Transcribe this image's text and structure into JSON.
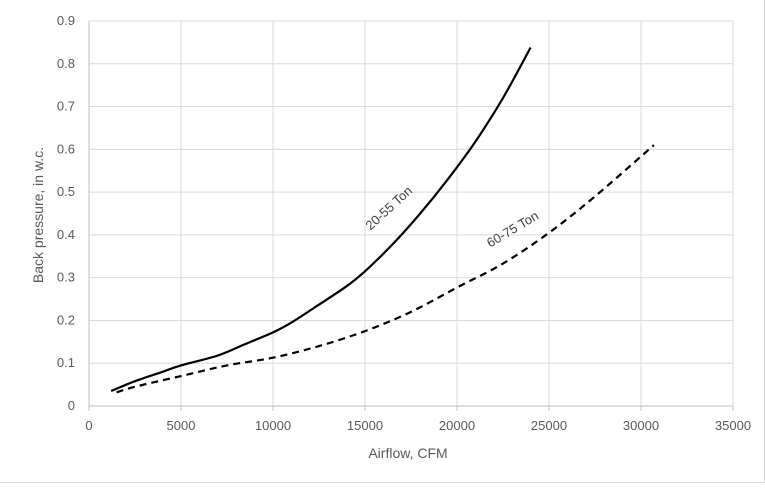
{
  "chart_data": {
    "type": "line",
    "title": "",
    "xlabel": "Airflow, CFM",
    "ylabel": "Back pressure,  in w.c.",
    "xlim": [
      0,
      35000
    ],
    "ylim": [
      0,
      0.9
    ],
    "xticks": [
      0,
      5000,
      10000,
      15000,
      20000,
      25000,
      30000,
      35000
    ],
    "yticks": [
      0,
      0.1,
      0.2,
      0.3,
      0.4,
      0.5,
      0.6,
      0.7,
      0.8,
      0.9
    ],
    "xtick_labels": [
      "0",
      "5000",
      "10000",
      "15000",
      "20000",
      "25000",
      "30000",
      "35000"
    ],
    "ytick_labels": [
      "0",
      "0.1",
      "0.2",
      "0.3",
      "0.4",
      "0.5",
      "0.6",
      "0.7",
      "0.8",
      "0.9"
    ],
    "grid": true,
    "legend": "none",
    "series": [
      {
        "name": "20-55 Ton",
        "style": "solid",
        "color": "#000000",
        "x": [
          1200,
          2500,
          4000,
          5000,
          7000,
          8500,
          10000,
          11000,
          12500,
          14000,
          15000,
          16500,
          18000,
          19500,
          21000,
          22500,
          24000
        ],
        "y": [
          0.035,
          0.058,
          0.08,
          0.095,
          0.118,
          0.145,
          0.172,
          0.195,
          0.237,
          0.28,
          0.315,
          0.378,
          0.45,
          0.53,
          0.618,
          0.72,
          0.838
        ]
      },
      {
        "name": "60-75 Ton",
        "style": "dashed",
        "color": "#000000",
        "x": [
          1500,
          2500,
          5000,
          7500,
          10000,
          12500,
          15000,
          17500,
          20000,
          22500,
          25000,
          27500,
          30700
        ],
        "y": [
          0.032,
          0.045,
          0.07,
          0.095,
          0.113,
          0.14,
          0.175,
          0.22,
          0.277,
          0.333,
          0.405,
          0.49,
          0.61
        ]
      }
    ],
    "annotations": [
      {
        "text": "20-55 Ton",
        "series": 0
      },
      {
        "text": "60-75 Ton",
        "series": 1
      }
    ]
  }
}
